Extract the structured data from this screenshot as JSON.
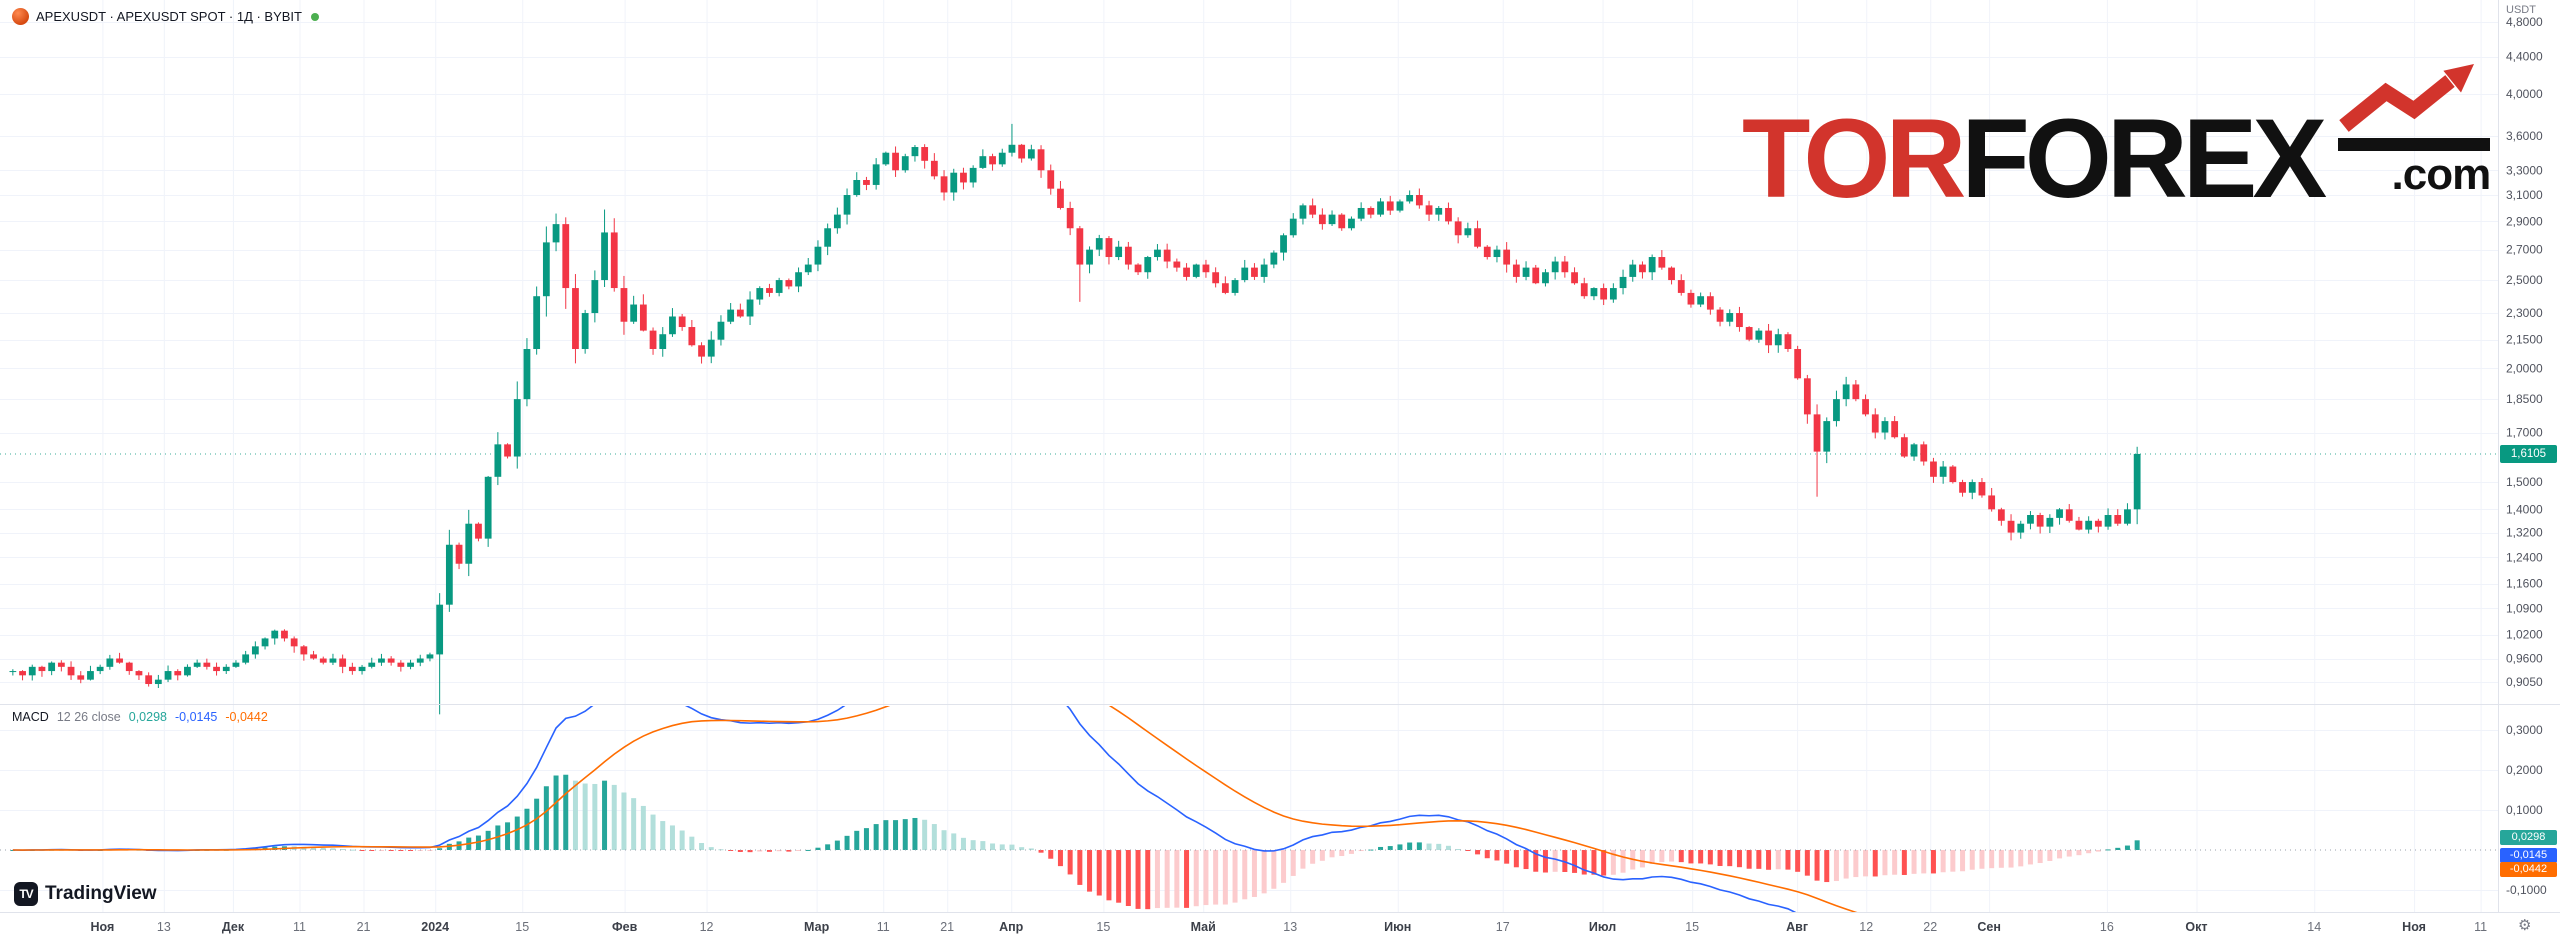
{
  "header": {
    "symbol_title": "APEXUSDT · APEXUSDT SPOT · 1Д · BYBIT",
    "status_color": "#4caf50"
  },
  "price_axis": {
    "currency": "USDT",
    "last_price": 1.6105,
    "last_price_label": "1,6105",
    "ticks": [
      [
        "4,8000",
        4.8
      ],
      [
        "4,4000",
        4.4
      ],
      [
        "4,0000",
        4.0
      ],
      [
        "3,6000",
        3.6
      ],
      [
        "3,3000",
        3.3
      ],
      [
        "3,1000",
        3.1
      ],
      [
        "2,9000",
        2.9
      ],
      [
        "2,7000",
        2.7
      ],
      [
        "2,5000",
        2.5
      ],
      [
        "2,3000",
        2.3
      ],
      [
        "2,1500",
        2.15
      ],
      [
        "2,0000",
        2.0
      ],
      [
        "1,8500",
        1.85
      ],
      [
        "1,7000",
        1.7
      ],
      [
        "1,5000",
        1.5
      ],
      [
        "1,4000",
        1.4
      ],
      [
        "1,3200",
        1.32
      ],
      [
        "1,2400",
        1.24
      ],
      [
        "1,1600",
        1.16
      ],
      [
        "1,0900",
        1.09
      ],
      [
        "1,0200",
        1.02
      ],
      [
        "0,9600",
        0.96
      ],
      [
        "0,9050",
        0.905
      ]
    ]
  },
  "macd_panel": {
    "title": "MACD",
    "params": "12 26 close",
    "hist_value": "0,0298",
    "macd_value": "-0,0145",
    "signal_value": "-0,0442",
    "values": {
      "hist": 0.0298,
      "macd": -0.0145,
      "signal": -0.0442
    },
    "ticks": [
      [
        "0,3000",
        0.3
      ],
      [
        "0,2000",
        0.2
      ],
      [
        "0,1000",
        0.1
      ],
      [
        "-0,1000",
        -0.1
      ]
    ]
  },
  "time_axis": {
    "labels": [
      [
        "Ноя",
        0.04,
        1
      ],
      [
        "13",
        0.064,
        0
      ],
      [
        "Дек",
        0.091,
        1
      ],
      [
        "11",
        0.117,
        0
      ],
      [
        "21",
        0.142,
        0
      ],
      [
        "2024",
        0.17,
        1
      ],
      [
        "15",
        0.204,
        0
      ],
      [
        "Фев",
        0.244,
        1
      ],
      [
        "12",
        0.276,
        0
      ],
      [
        "Мар",
        0.319,
        1
      ],
      [
        "11",
        0.345,
        0
      ],
      [
        "21",
        0.37,
        0
      ],
      [
        "Апр",
        0.395,
        1
      ],
      [
        "15",
        0.431,
        0
      ],
      [
        "Май",
        0.47,
        1
      ],
      [
        "13",
        0.504,
        0
      ],
      [
        "Июн",
        0.546,
        1
      ],
      [
        "17",
        0.587,
        0
      ],
      [
        "Июл",
        0.626,
        1
      ],
      [
        "15",
        0.661,
        0
      ],
      [
        "Авг",
        0.702,
        1
      ],
      [
        "12",
        0.729,
        0
      ],
      [
        "22",
        0.754,
        0
      ],
      [
        "Сен",
        0.777,
        1
      ],
      [
        "16",
        0.823,
        0
      ],
      [
        "Окт",
        0.858,
        1
      ],
      [
        "14",
        0.904,
        0
      ],
      [
        "Ноя",
        0.943,
        1
      ],
      [
        "11",
        0.969,
        0
      ]
    ]
  },
  "watermark": {
    "part1": "TOR",
    "part2": "FOREX",
    "suffix": ".com"
  },
  "footer": {
    "brand": "TradingView",
    "mark": "TV"
  },
  "colors": {
    "up": "#089981",
    "down": "#f23645",
    "macd_line": "#2962ff",
    "signal_line": "#ff6d00",
    "hist_grow_above": "#26a69a",
    "hist_fall_above": "#b2dfdb",
    "hist_fall_below": "#ff5252",
    "hist_grow_below": "#fccbcd",
    "grid": "#f0f3fa",
    "axis_text": "#50535e",
    "badge_price": "#089981",
    "badge_hist": "#26a69a",
    "badge_macd": "#2962ff",
    "badge_signal": "#ff6d00",
    "watermark_red": "#d2342c",
    "watermark_black": "#111111"
  },
  "chart_data": {
    "type": "candlestick+macd",
    "symbol": "APEXUSDT",
    "exchange": "BYBIT",
    "interval": "1Д",
    "price_scale": "log",
    "price_range": [
      0.86,
      5.0
    ],
    "macd_range": [
      -0.155,
      0.36
    ],
    "macd_settings": [
      12,
      26,
      9
    ],
    "ema_periods": [
      24,
      52,
      18
    ],
    "last_price": 1.6105,
    "closes": [
      0.93,
      0.92,
      0.94,
      0.93,
      0.95,
      0.94,
      0.92,
      0.91,
      0.93,
      0.94,
      0.96,
      0.95,
      0.93,
      0.92,
      0.9,
      0.91,
      0.93,
      0.92,
      0.94,
      0.95,
      0.94,
      0.93,
      0.94,
      0.95,
      0.97,
      0.99,
      1.01,
      1.03,
      1.01,
      0.99,
      0.97,
      0.96,
      0.95,
      0.96,
      0.94,
      0.93,
      0.94,
      0.95,
      0.96,
      0.95,
      0.94,
      0.95,
      0.96,
      0.97,
      1.1,
      1.28,
      1.22,
      1.35,
      1.3,
      1.52,
      1.65,
      1.6,
      1.85,
      2.1,
      2.4,
      2.75,
      2.88,
      2.45,
      2.1,
      2.3,
      2.5,
      2.82,
      2.45,
      2.25,
      2.35,
      2.2,
      2.1,
      2.18,
      2.28,
      2.22,
      2.12,
      2.06,
      2.15,
      2.25,
      2.32,
      2.28,
      2.38,
      2.45,
      2.42,
      2.5,
      2.46,
      2.55,
      2.6,
      2.72,
      2.85,
      2.95,
      3.1,
      3.22,
      3.18,
      3.35,
      3.45,
      3.3,
      3.42,
      3.5,
      3.38,
      3.25,
      3.12,
      3.28,
      3.2,
      3.32,
      3.42,
      3.35,
      3.45,
      3.52,
      3.4,
      3.48,
      3.3,
      3.15,
      3.0,
      2.85,
      2.6,
      2.7,
      2.78,
      2.65,
      2.72,
      2.6,
      2.55,
      2.65,
      2.7,
      2.62,
      2.58,
      2.52,
      2.6,
      2.55,
      2.48,
      2.42,
      2.5,
      2.58,
      2.52,
      2.6,
      2.68,
      2.8,
      2.92,
      3.02,
      2.95,
      2.88,
      2.95,
      2.85,
      2.92,
      3.0,
      2.95,
      3.05,
      2.98,
      3.05,
      3.1,
      3.02,
      2.95,
      3.0,
      2.9,
      2.8,
      2.85,
      2.72,
      2.65,
      2.7,
      2.6,
      2.52,
      2.58,
      2.48,
      2.55,
      2.62,
      2.55,
      2.48,
      2.4,
      2.45,
      2.38,
      2.45,
      2.52,
      2.6,
      2.55,
      2.65,
      2.58,
      2.5,
      2.42,
      2.35,
      2.4,
      2.32,
      2.25,
      2.3,
      2.22,
      2.15,
      2.2,
      2.12,
      2.18,
      2.1,
      1.95,
      1.78,
      1.62,
      1.75,
      1.85,
      1.92,
      1.85,
      1.78,
      1.7,
      1.75,
      1.68,
      1.6,
      1.65,
      1.58,
      1.52,
      1.56,
      1.5,
      1.46,
      1.5,
      1.45,
      1.4,
      1.36,
      1.32,
      1.35,
      1.38,
      1.34,
      1.37,
      1.4,
      1.36,
      1.33,
      1.36,
      1.34,
      1.38,
      1.35,
      1.4,
      1.6105
    ],
    "wick_high_boost": {
      "56": 0.06,
      "61": 0.09,
      "103": 0.18,
      "219": 0.02
    },
    "wick_low_boost": {
      "44": 0.12,
      "110": 0.22,
      "186": 0.13
    }
  }
}
